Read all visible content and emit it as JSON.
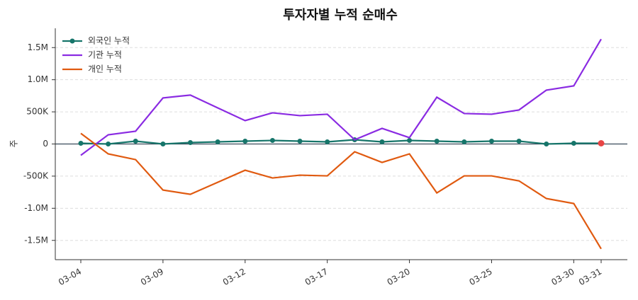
{
  "chart_data": {
    "type": "line",
    "title": "투자자별 누적 순매수",
    "y_label": "주",
    "categories": [
      "03-04",
      null,
      null,
      "03-09",
      null,
      null,
      "03-12",
      null,
      null,
      "03-17",
      null,
      null,
      "03-20",
      null,
      null,
      "03-25",
      null,
      null,
      "03-30",
      "03-31"
    ],
    "series": [
      {
        "name": "외국인 누적",
        "color": "#16756a",
        "markers": true,
        "values": [
          11000,
          0,
          44000,
          0,
          22000,
          33000,
          44000,
          55000,
          44000,
          33000,
          66000,
          33000,
          55000,
          44000,
          33000,
          44000,
          44000,
          0,
          11000,
          11000
        ]
      },
      {
        "name": "기관 누적",
        "color": "#8a2be2",
        "markers": false,
        "values": [
          -176000,
          143000,
          199000,
          717000,
          761000,
          562000,
          364000,
          485000,
          441000,
          463000,
          66000,
          243000,
          99000,
          728000,
          474000,
          463000,
          529000,
          838000,
          904000,
          1632000
        ]
      },
      {
        "name": "개인 누적",
        "color": "#e05a10",
        "markers": false,
        "values": [
          165000,
          -154000,
          -243000,
          -717000,
          -783000,
          -596000,
          -408000,
          -529000,
          -485000,
          -496000,
          -121000,
          -287000,
          -154000,
          -761000,
          -496000,
          -496000,
          -574000,
          -849000,
          -926000,
          -1632000
        ]
      }
    ],
    "highlight_last_color": "#e84545",
    "ylim": [
      -1800000,
      1800000
    ],
    "yticks": [
      {
        "value": -1500000,
        "label": "-1.5M"
      },
      {
        "value": -1000000,
        "label": "-1.0M"
      },
      {
        "value": -500000,
        "label": "-500K"
      },
      0,
      {
        "value": 500000,
        "label": "500K"
      },
      {
        "value": 1000000,
        "label": "1.0M"
      },
      {
        "value": 1500000,
        "label": "1.5M"
      }
    ],
    "grid": true,
    "legend": "upper-left"
  }
}
